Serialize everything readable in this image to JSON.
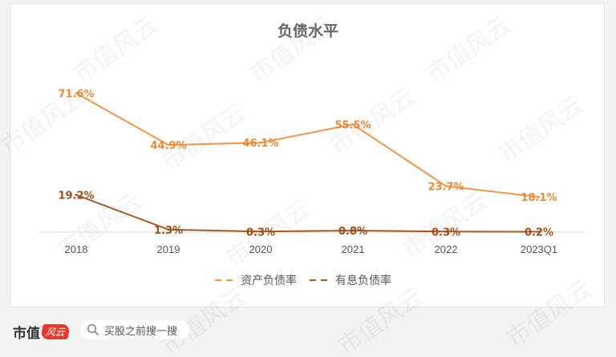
{
  "chart_data": {
    "type": "line",
    "title": "负债水平",
    "categories": [
      "2018",
      "2019",
      "2020",
      "2021",
      "2022",
      "2023Q1"
    ],
    "series": [
      {
        "name": "资产负债率",
        "color": "#f0954a",
        "labels_color": "#e98a3c",
        "values": [
          71.6,
          44.9,
          46.1,
          55.5,
          23.7,
          18.1
        ],
        "labels": [
          "71.6%",
          "44.9%",
          "46.1%",
          "55.5%",
          "23.7%",
          "18.1%"
        ]
      },
      {
        "name": "有息负债率",
        "color": "#a65a25",
        "labels_color": "#9a4f1c",
        "values": [
          19.2,
          1.3,
          0.3,
          0.8,
          0.3,
          0.2
        ],
        "labels": [
          "19.2%",
          "1.3%",
          "0.3%",
          "0.8%",
          "0.3%",
          "0.2%"
        ]
      }
    ],
    "ylim": [
      0,
      80
    ],
    "grid": false,
    "legend_position": "bottom",
    "xlabel": "",
    "ylabel": ""
  },
  "watermark": "市值风云",
  "footer": {
    "logo_text": "市值",
    "logo_badge": "风云",
    "search_placeholder": "买股之前搜一搜",
    "search_icon": "search-icon"
  }
}
